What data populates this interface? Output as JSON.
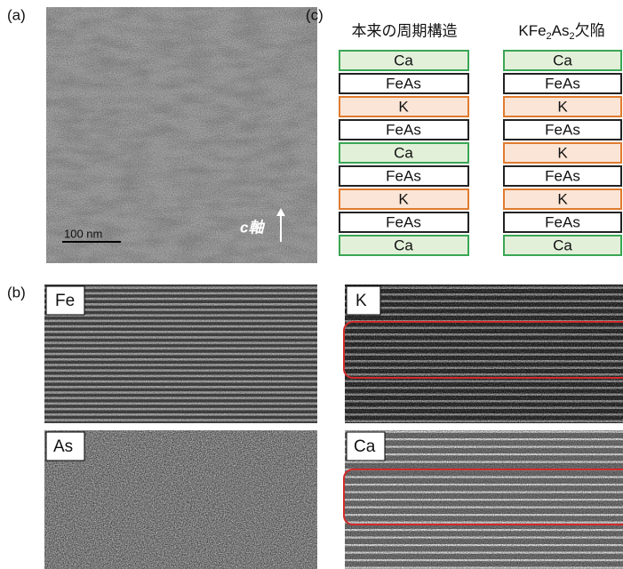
{
  "panel_a": {
    "label": "(a)",
    "scale_bar": "100 nm",
    "axis_label": "c軸"
  },
  "panel_b": {
    "label": "(b)",
    "maps": [
      "Fe",
      "As",
      "K",
      "Ca"
    ]
  },
  "panel_c": {
    "label": "(c)",
    "columns": [
      {
        "title_parts": [
          "本来の周期構造"
        ],
        "layers": [
          "Ca",
          "FeAs",
          "K",
          "FeAs",
          "Ca",
          "FeAs",
          "K",
          "FeAs",
          "Ca"
        ]
      },
      {
        "title_parts": [
          "KFe",
          "2",
          "As",
          "2",
          "欠陥"
        ],
        "layers": [
          "Ca",
          "FeAs",
          "K",
          "FeAs",
          "K",
          "FeAs",
          "K",
          "FeAs",
          "Ca"
        ]
      }
    ],
    "layer_styles": {
      "Ca": {
        "fill": "#e2f0d9",
        "stroke": "#3aa655"
      },
      "FeAs": {
        "fill": "#ffffff",
        "stroke": "#222222"
      },
      "K": {
        "fill": "#fbe5d6",
        "stroke": "#e07b30"
      }
    }
  }
}
